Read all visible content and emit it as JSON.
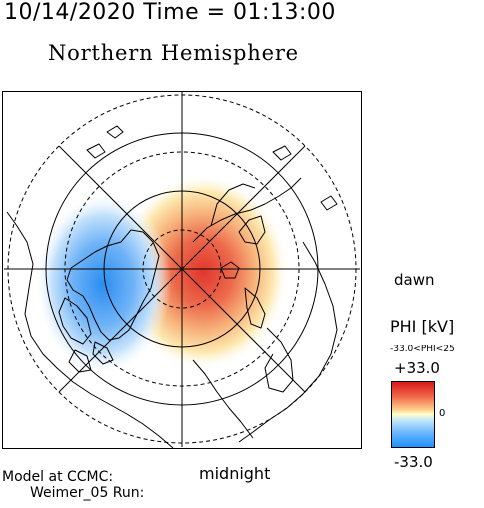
{
  "header": {
    "datetime": "10/14/2020 Time = 01:13:00",
    "hemisphere": "Northern Hemisphere"
  },
  "map": {
    "projection": "polar stereographic (north pole centered)",
    "labels": {
      "dawn": "dawn",
      "midnight": "midnight"
    },
    "potential_pattern": {
      "positive_cell": "dawn-to-midnight sector",
      "negative_cell": "dusk sector"
    }
  },
  "colorbar": {
    "title": "PHI [kV]",
    "range_text": "-33.0<PHI<25",
    "max_label": "+33.0",
    "zero_label": "0",
    "min_label": "-33.0",
    "colors": {
      "max": "#d7191c",
      "mid": "#ffffcc",
      "min": "#1e90ff"
    }
  },
  "footer": {
    "model_label": "Model at CCMC:",
    "run_label": "Weimer_05 Run:"
  }
}
